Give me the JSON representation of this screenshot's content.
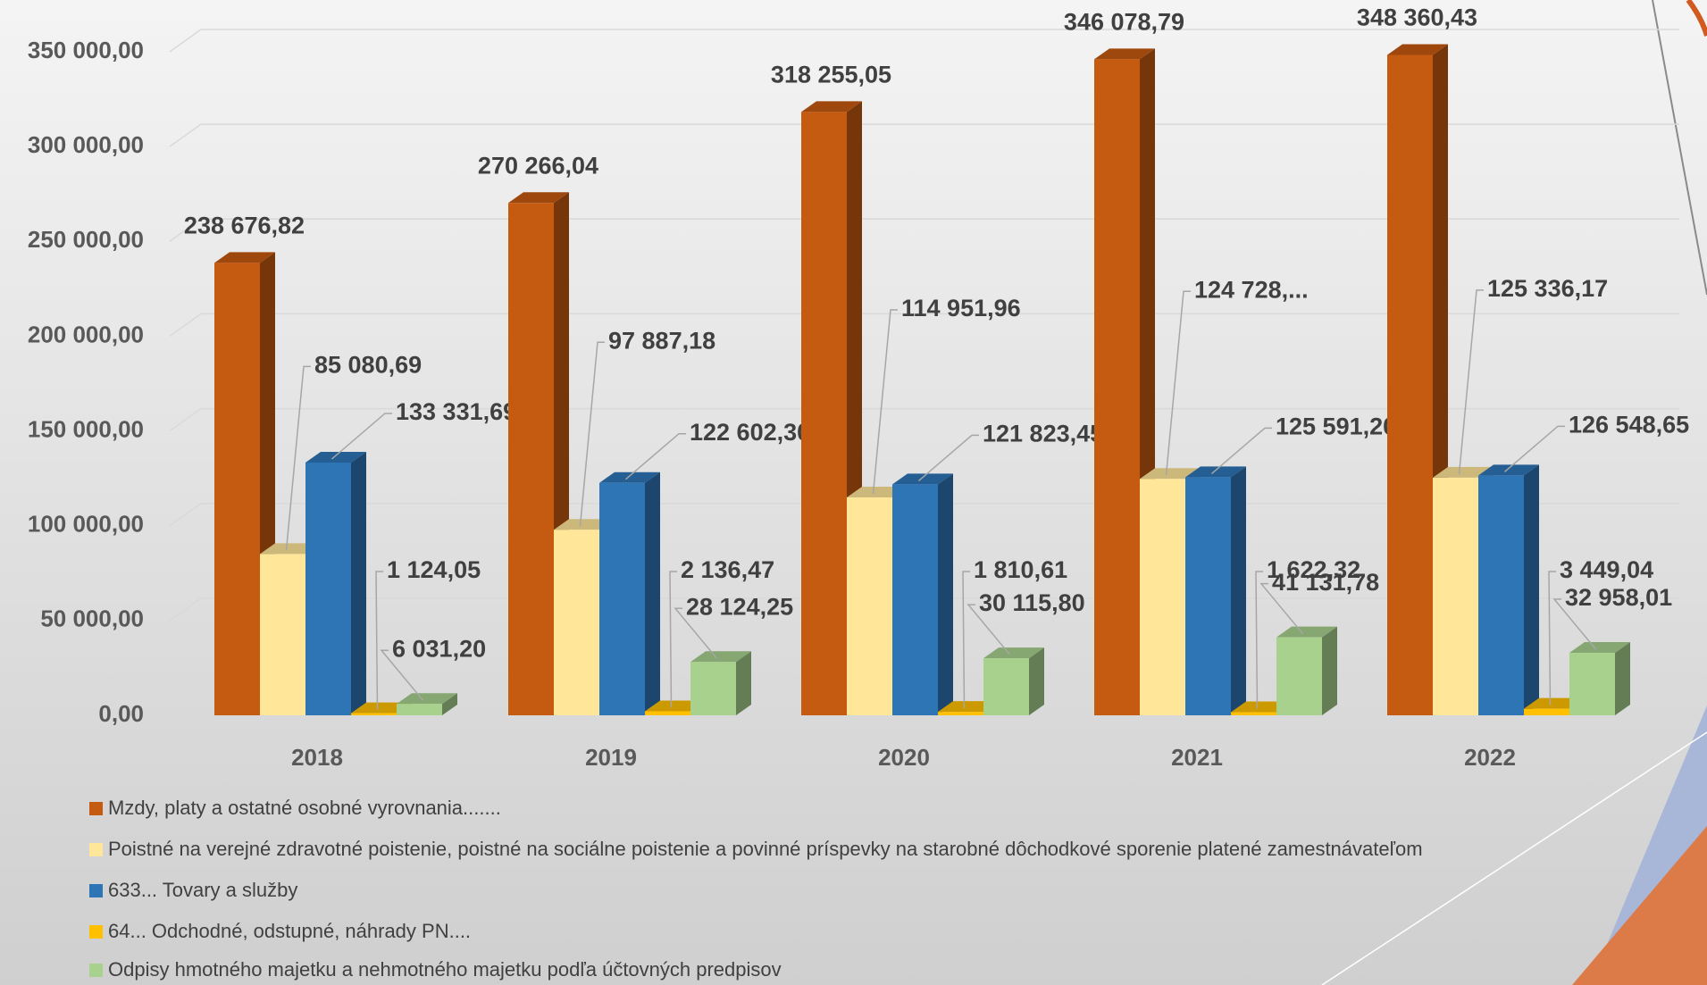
{
  "chart_data": {
    "type": "bar3d",
    "categories": [
      "2018",
      "2019",
      "2020",
      "2021",
      "2022"
    ],
    "series": [
      {
        "name": "Mzdy, platy a ostatné osobné vyrovnania.......",
        "color": "#c55a11",
        "values": [
          238676.82,
          270266.04,
          318255.05,
          346078.79,
          348360.43
        ],
        "value_labels": [
          "238 676,82",
          "270 266,04",
          "318 255,05",
          "346 078,79",
          "348 360,43"
        ]
      },
      {
        "name": "Poistné na verejné zdravotné poistenie, poistné na sociálne poistenie a povinné príspevky na starobné dôchodkové sporenie platené zamestnávateľom",
        "color": "#ffe699",
        "values": [
          85080.69,
          97887.18,
          114951.96,
          124728,
          125336.17
        ],
        "value_labels": [
          "85 080,69",
          "97 887,18",
          "114 951,96",
          "124 728,...",
          "125 336,17"
        ]
      },
      {
        "name": "633... Tovary a služby",
        "color": "#2e75b6",
        "values": [
          133331.69,
          122602.3,
          121823.45,
          125591.2,
          126548.65
        ],
        "value_labels": [
          "133 331,69",
          "122 602,30",
          "121 823,45",
          "125 591,20",
          "126 548,65"
        ]
      },
      {
        "name": "64... Odchodné, odstupné, náhrady PN....",
        "color": "#ffc000",
        "values": [
          1124.05,
          2136.47,
          1810.61,
          1622.32,
          3449.04
        ],
        "value_labels": [
          "1 124,05",
          "2 136,47",
          "1 810,61",
          "1 622,32",
          "3 449,04"
        ]
      },
      {
        "name": "Odpisy hmotného majetku a nehmotného majetku podľa účtovných predpisov",
        "color": "#a9d18e",
        "values": [
          6031.2,
          28124.25,
          30115.8,
          41131.78,
          32958.01
        ],
        "value_labels": [
          "6 031,20",
          "28 124,25",
          "30 115,80",
          "41 131,78",
          "32 958,01"
        ]
      }
    ],
    "ylim": [
      0,
      350000
    ],
    "yticks": [
      {
        "value": 0,
        "label": "0,00"
      },
      {
        "value": 50000,
        "label": "50 000,00"
      },
      {
        "value": 100000,
        "label": "100 000,00"
      },
      {
        "value": 150000,
        "label": "150 000,00"
      },
      {
        "value": 200000,
        "label": "200 000,00"
      },
      {
        "value": 250000,
        "label": "250 000,00"
      },
      {
        "value": 300000,
        "label": "300 000,00"
      },
      {
        "value": 350000,
        "label": "350 000,00"
      }
    ],
    "grid": true,
    "legend": "bottom"
  }
}
